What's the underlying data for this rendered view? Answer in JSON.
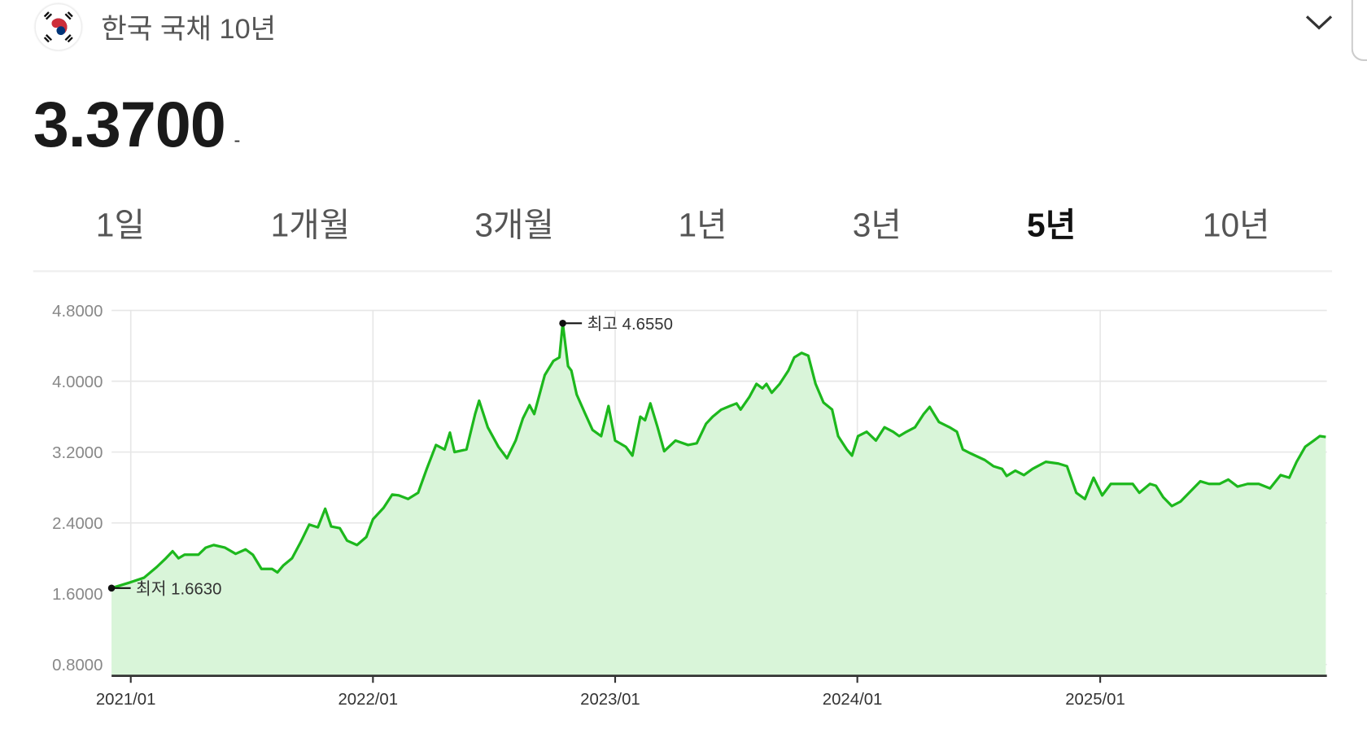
{
  "header": {
    "title": "한국 국채 10년",
    "flag_icon": "korea-flag-icon",
    "dropdown_icon": "chevron-down-icon"
  },
  "quote": {
    "price": "3.3700",
    "change": "-"
  },
  "tabs": [
    {
      "label": "1일"
    },
    {
      "label": "1개월"
    },
    {
      "label": "3개월"
    },
    {
      "label": "1년"
    },
    {
      "label": "3년"
    },
    {
      "label": "5년",
      "active": true
    },
    {
      "label": "10년"
    }
  ],
  "colors": {
    "line": "#1db81d",
    "fill": "#d9f5d9",
    "grid": "#e6e6e6"
  },
  "chart_data": {
    "type": "area",
    "ylim": [
      0.8,
      4.8
    ],
    "yticks": [
      "4.8000",
      "4.0000",
      "3.2000",
      "2.4000",
      "1.6000",
      "0.8000"
    ],
    "ytick_values": [
      4.8,
      4.0,
      3.2,
      2.4,
      1.6,
      0.8
    ],
    "xticks": [
      "2021/01",
      "2022/01",
      "2023/01",
      "2024/01",
      "2025/01"
    ],
    "xtick_dates": [
      "2021-01-01",
      "2022-01-01",
      "2023-01-01",
      "2024-01-01",
      "2025-01-01"
    ],
    "grid": true,
    "annotations": {
      "high": {
        "label": "최고 4.6550",
        "date": "2022-10-14",
        "value": 4.655
      },
      "low": {
        "label": "최저 1.6630",
        "date": "2020-12-03",
        "value": 1.663
      }
    },
    "x": [
      "2020-12-03",
      "2021-01-01",
      "2021-01-21",
      "2021-02-09",
      "2021-02-23",
      "2021-03-05",
      "2021-03-14",
      "2021-03-23",
      "2021-04-13",
      "2021-04-24",
      "2021-05-06",
      "2021-05-23",
      "2021-06-08",
      "2021-06-23",
      "2021-07-04",
      "2021-07-17",
      "2021-08-02",
      "2021-08-10",
      "2021-08-19",
      "2021-09-01",
      "2021-09-14",
      "2021-09-27",
      "2021-10-10",
      "2021-10-21",
      "2021-10-30",
      "2021-11-12",
      "2021-11-23",
      "2021-12-08",
      "2021-12-22",
      "2022-01-01",
      "2022-01-17",
      "2022-01-30",
      "2022-02-09",
      "2022-02-23",
      "2022-03-10",
      "2022-03-23",
      "2022-04-06",
      "2022-04-19",
      "2022-04-27",
      "2022-05-04",
      "2022-05-22",
      "2022-06-04",
      "2022-06-10",
      "2022-06-23",
      "2022-07-09",
      "2022-07-22",
      "2022-08-04",
      "2022-08-15",
      "2022-08-25",
      "2022-09-01",
      "2022-09-17",
      "2022-09-30",
      "2022-10-09",
      "2022-10-14",
      "2022-10-22",
      "2022-10-27",
      "2022-11-04",
      "2022-11-17",
      "2022-11-28",
      "2022-12-11",
      "2022-12-22",
      "2023-01-01",
      "2023-01-17",
      "2023-01-27",
      "2023-02-08",
      "2023-02-15",
      "2023-02-23",
      "2023-03-06",
      "2023-03-16",
      "2023-04-02",
      "2023-04-21",
      "2023-05-04",
      "2023-05-18",
      "2023-05-28",
      "2023-06-10",
      "2023-06-23",
      "2023-07-03",
      "2023-07-09",
      "2023-07-22",
      "2023-08-02",
      "2023-08-11",
      "2023-08-17",
      "2023-08-25",
      "2023-09-06",
      "2023-09-19",
      "2023-09-28",
      "2023-10-09",
      "2023-10-19",
      "2023-10-30",
      "2023-11-11",
      "2023-11-24",
      "2023-12-03",
      "2023-12-16",
      "2023-12-24",
      "2024-01-02",
      "2024-01-15",
      "2024-01-29",
      "2024-02-11",
      "2024-02-24",
      "2024-03-04",
      "2024-03-15",
      "2024-03-28",
      "2024-04-10",
      "2024-04-19",
      "2024-05-03",
      "2024-05-19",
      "2024-05-30",
      "2024-06-08",
      "2024-06-21",
      "2024-07-11",
      "2024-07-24",
      "2024-08-06",
      "2024-08-13",
      "2024-08-26",
      "2024-09-08",
      "2024-09-21",
      "2024-10-11",
      "2024-10-30",
      "2024-11-12",
      "2024-11-26",
      "2024-12-09",
      "2024-12-22",
      "2025-01-04",
      "2025-01-17",
      "2025-02-06",
      "2025-02-19",
      "2025-03-01",
      "2025-03-17",
      "2025-03-26",
      "2025-04-06",
      "2025-04-19",
      "2025-05-02",
      "2025-05-15",
      "2025-06-01",
      "2025-06-14",
      "2025-06-30",
      "2025-07-13",
      "2025-07-27",
      "2025-08-11",
      "2025-08-28",
      "2025-09-14",
      "2025-09-30",
      "2025-10-13",
      "2025-10-24",
      "2025-11-06",
      "2025-11-19",
      "2025-11-28",
      "2025-12-07"
    ],
    "values": [
      1.663,
      1.73,
      1.78,
      1.9,
      2.0,
      2.08,
      2.0,
      2.04,
      2.04,
      2.12,
      2.15,
      2.12,
      2.05,
      2.1,
      2.04,
      1.88,
      1.88,
      1.84,
      1.92,
      2.0,
      2.18,
      2.38,
      2.35,
      2.56,
      2.36,
      2.34,
      2.2,
      2.15,
      2.24,
      2.44,
      2.57,
      2.72,
      2.71,
      2.67,
      2.74,
      3.01,
      3.28,
      3.23,
      3.42,
      3.2,
      3.23,
      3.63,
      3.78,
      3.48,
      3.26,
      3.13,
      3.33,
      3.58,
      3.73,
      3.63,
      4.07,
      4.23,
      4.27,
      4.655,
      4.17,
      4.12,
      3.85,
      3.63,
      3.45,
      3.38,
      3.72,
      3.33,
      3.26,
      3.16,
      3.6,
      3.56,
      3.75,
      3.48,
      3.21,
      3.33,
      3.28,
      3.3,
      3.52,
      3.6,
      3.68,
      3.72,
      3.75,
      3.68,
      3.82,
      3.97,
      3.92,
      3.97,
      3.87,
      3.97,
      4.12,
      4.27,
      4.32,
      4.29,
      3.97,
      3.76,
      3.68,
      3.38,
      3.23,
      3.16,
      3.38,
      3.43,
      3.33,
      3.48,
      3.43,
      3.38,
      3.43,
      3.48,
      3.63,
      3.71,
      3.54,
      3.48,
      3.43,
      3.23,
      3.18,
      3.11,
      3.04,
      3.01,
      2.93,
      2.99,
      2.94,
      3.01,
      3.09,
      3.07,
      3.04,
      2.74,
      2.67,
      2.91,
      2.71,
      2.84,
      2.84,
      2.84,
      2.74,
      2.84,
      2.82,
      2.69,
      2.59,
      2.64,
      2.74,
      2.87,
      2.84,
      2.84,
      2.89,
      2.81,
      2.84,
      2.84,
      2.79,
      2.94,
      2.91,
      3.09,
      3.26,
      3.33,
      3.38,
      3.37
    ]
  }
}
